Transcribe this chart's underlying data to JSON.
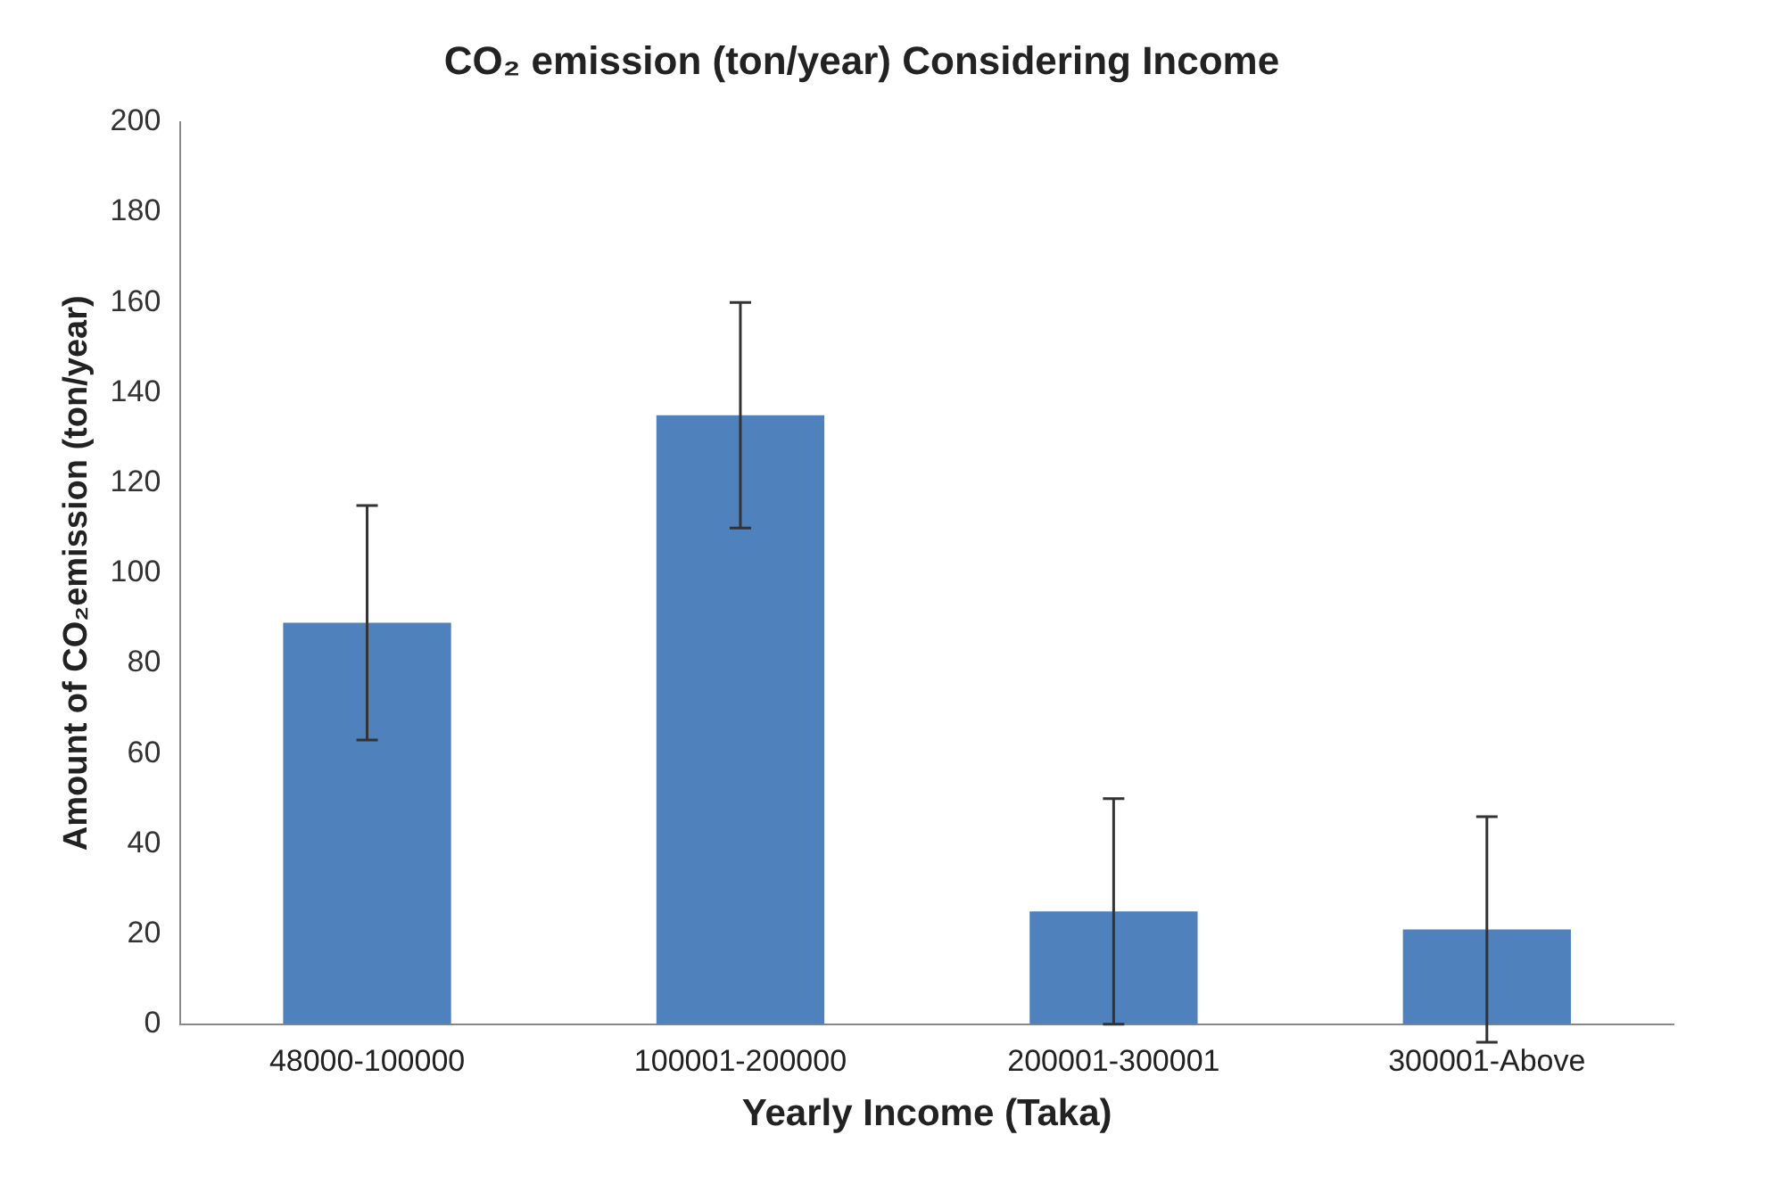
{
  "chart_data": {
    "type": "bar",
    "title": "CO₂ emission (ton/year) Considering Income",
    "xlabel": "Yearly Income (Taka)",
    "ylabel": "Amount of CO₂emission (ton/year)",
    "categories": [
      "48000-100000",
      "100001-200000",
      "200001-300001",
      "300001-Above"
    ],
    "values": [
      89,
      135,
      25,
      21
    ],
    "errors": [
      26,
      25,
      25,
      25
    ],
    "color": "#4f81bd",
    "ylim": [
      0,
      200
    ],
    "yticks": [
      0,
      20,
      40,
      60,
      80,
      100,
      120,
      140,
      160,
      180,
      200
    ],
    "grid": false,
    "legend": false
  }
}
